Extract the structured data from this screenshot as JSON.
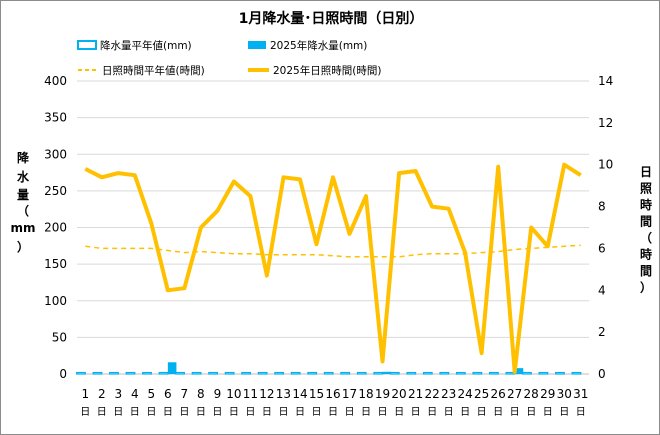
{
  "chart_data": {
    "type": "bar+line",
    "title": "1月降水量･日照時間（日別）",
    "x": [
      "1",
      "2",
      "3",
      "4",
      "5",
      "6",
      "7",
      "8",
      "9",
      "10",
      "11",
      "12",
      "13",
      "14",
      "15",
      "16",
      "17",
      "18",
      "19",
      "20",
      "21",
      "22",
      "23",
      "24",
      "25",
      "26",
      "27",
      "28",
      "29",
      "30",
      "31"
    ],
    "x_suffix": "日",
    "y_left": {
      "label": "降水量（mm）",
      "label_chars": [
        "降",
        "水",
        "量",
        "（",
        "mm",
        "）"
      ],
      "range": [
        0,
        400
      ],
      "ticks": [
        0,
        50,
        100,
        150,
        200,
        250,
        300,
        350,
        400
      ]
    },
    "y_right": {
      "label": "日照時間（時間）",
      "label_chars": [
        "日",
        "照",
        "時",
        "間",
        "（",
        "時",
        "間",
        "）"
      ],
      "range": [
        0,
        14
      ],
      "ticks": [
        0,
        2,
        4,
        6,
        8,
        10,
        12,
        14
      ]
    },
    "legend": [
      {
        "name": "降水量平年値(mm)",
        "style": "outline-box"
      },
      {
        "name": "2025年降水量(mm)",
        "style": "filled-box"
      },
      {
        "name": "日照時間平年値(時間)",
        "style": "dashed-line"
      },
      {
        "name": "2025年日照時間(時間)",
        "style": "thick-line"
      }
    ],
    "series": [
      {
        "name": "降水量平年値(mm)",
        "axis": "left",
        "kind": "bar-outline",
        "values": [
          2,
          2,
          2,
          2,
          2,
          2,
          2,
          2,
          2,
          2,
          2,
          2,
          2,
          2,
          2,
          2,
          2,
          2,
          2,
          2,
          2,
          2,
          2,
          2,
          2,
          2,
          2,
          2,
          2,
          2,
          2
        ]
      },
      {
        "name": "2025年降水量(mm)",
        "axis": "left",
        "kind": "bar",
        "values": [
          0,
          0,
          0,
          0,
          0,
          16,
          0,
          0,
          0,
          0,
          0,
          0,
          0,
          0,
          0,
          0,
          0,
          0,
          3,
          0,
          0,
          0,
          0,
          0,
          0,
          0,
          8,
          0,
          0,
          0,
          0
        ]
      },
      {
        "name": "日照時間平年値(時間)",
        "axis": "right",
        "kind": "dashed-line",
        "values": [
          6.1,
          6.0,
          6.0,
          6.0,
          6.0,
          5.9,
          5.8,
          5.85,
          5.8,
          5.75,
          5.75,
          5.7,
          5.7,
          5.7,
          5.7,
          5.65,
          5.6,
          5.6,
          5.6,
          5.6,
          5.7,
          5.75,
          5.75,
          5.75,
          5.8,
          5.85,
          5.95,
          6.0,
          6.05,
          6.1,
          6.15
        ]
      },
      {
        "name": "2025年日照時間(時間)",
        "axis": "right",
        "kind": "line",
        "values": [
          9.8,
          9.4,
          9.6,
          9.5,
          7.2,
          4.0,
          4.1,
          7.0,
          7.8,
          9.2,
          8.5,
          4.7,
          9.4,
          9.3,
          6.2,
          9.4,
          6.7,
          8.5,
          0.6,
          9.6,
          9.7,
          8.0,
          7.9,
          5.8,
          1.0,
          9.9,
          0.1,
          7.0,
          6.1,
          10.0,
          9.5
        ]
      }
    ],
    "colors": {
      "precip": "#00b0f0",
      "sunshine": "#ffc000"
    }
  }
}
